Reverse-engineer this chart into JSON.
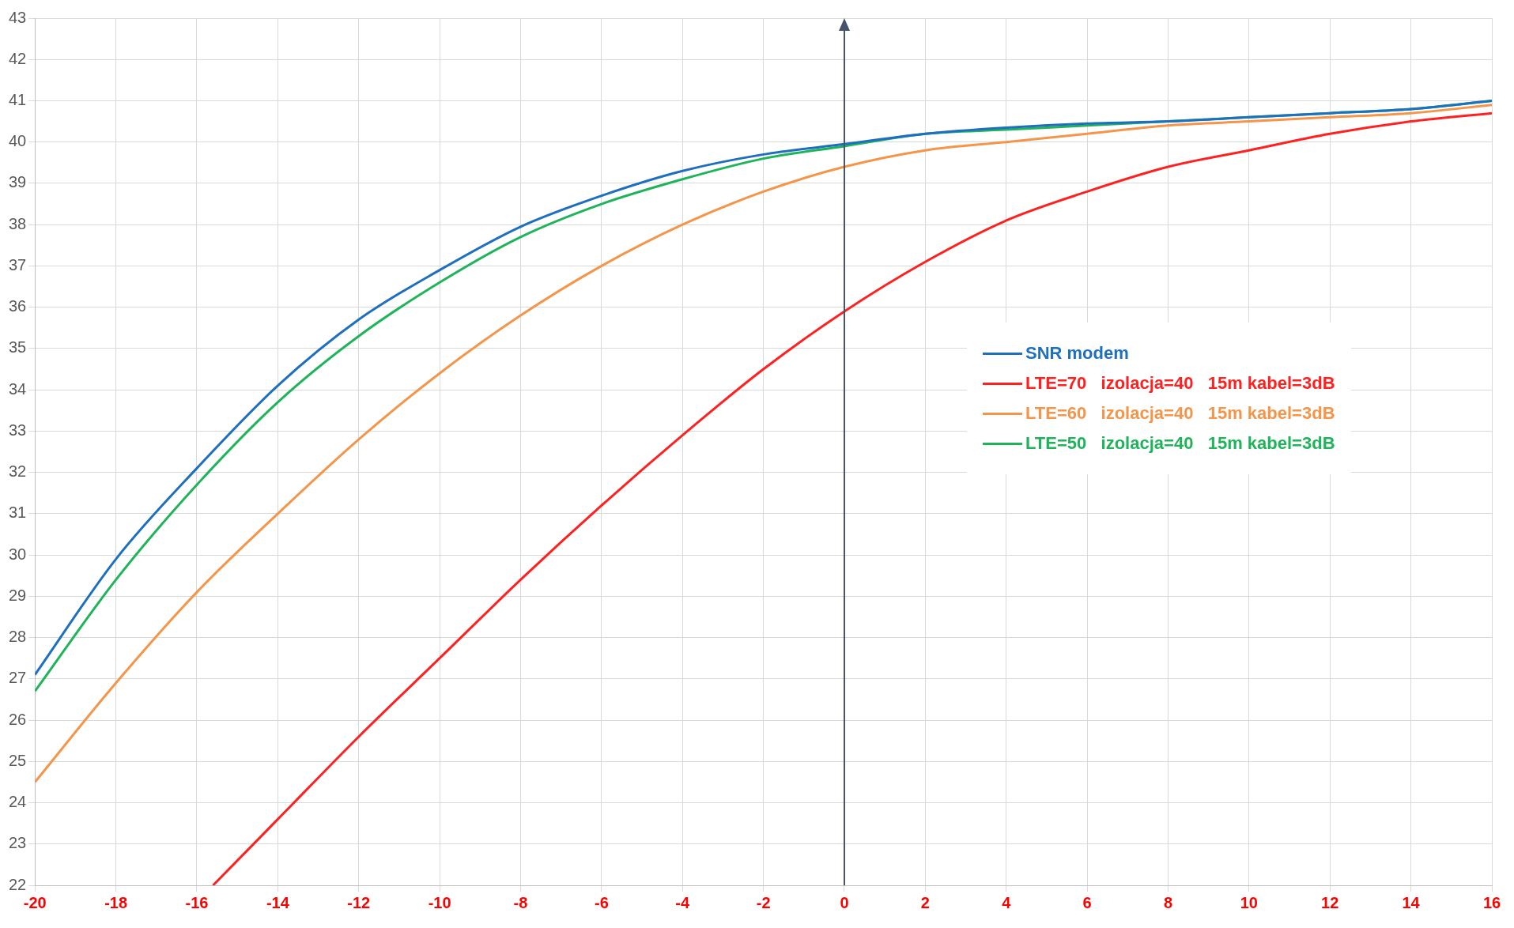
{
  "chart_data": {
    "type": "line",
    "x": [
      -20,
      -18,
      -16,
      -14,
      -12,
      -10,
      -8,
      -6,
      -4,
      -2,
      0,
      2,
      4,
      6,
      8,
      10,
      12,
      14,
      16
    ],
    "series": [
      {
        "name": "SNR modem",
        "color": "#1f6fc0",
        "values": [
          27.1,
          29.9,
          32.1,
          34.1,
          35.7,
          36.9,
          37.95,
          38.7,
          39.3,
          39.7,
          39.95,
          40.2,
          40.35,
          40.45,
          40.5,
          40.6,
          40.7,
          40.8,
          41.0
        ]
      },
      {
        "name": "LTE=70   izolacja=40   15m kabel=3dB",
        "color": "#ff2020",
        "x": [
          -15.6,
          -14,
          -12,
          -10,
          -8,
          -6,
          -4,
          -2,
          0,
          2,
          4,
          6,
          8,
          10,
          12,
          14,
          16
        ],
        "values": [
          22,
          23.6,
          25.6,
          27.5,
          29.4,
          31.2,
          32.9,
          34.5,
          35.9,
          37.1,
          38.1,
          38.8,
          39.4,
          39.8,
          40.2,
          40.5,
          40.7
        ]
      },
      {
        "name": "LTE=60   izolacja=40   15m kabel=3dB",
        "color": "#f4954a",
        "values": [
          24.5,
          26.9,
          29.1,
          31.0,
          32.8,
          34.4,
          35.8,
          37.0,
          38.0,
          38.8,
          39.4,
          39.8,
          40.0,
          40.2,
          40.4,
          40.5,
          40.6,
          40.7,
          40.9
        ]
      },
      {
        "name": "LTE=50   izolacja=40   15m kabel=3dB",
        "color": "#1fb45a",
        "values": [
          26.7,
          29.4,
          31.7,
          33.7,
          35.3,
          36.6,
          37.7,
          38.5,
          39.1,
          39.6,
          39.9,
          40.2,
          40.3,
          40.4,
          40.5,
          40.6,
          40.7,
          40.8,
          41.0
        ]
      }
    ],
    "xlim": [
      -20,
      16
    ],
    "xticks": [
      -20,
      -18,
      -16,
      -14,
      -12,
      -10,
      -8,
      -6,
      -4,
      -2,
      0,
      2,
      4,
      6,
      8,
      10,
      12,
      14,
      16
    ],
    "ylim": [
      22,
      43
    ],
    "yticks": [
      22,
      23,
      24,
      25,
      26,
      27,
      28,
      29,
      30,
      31,
      32,
      33,
      34,
      35,
      36,
      37,
      38,
      39,
      40,
      41,
      42,
      43
    ],
    "grid": true,
    "legend": "right",
    "marker": "none",
    "line_style": "solid",
    "ref_lines": [
      {
        "axis": "x",
        "value": 0,
        "color": "#44546a"
      }
    ]
  }
}
